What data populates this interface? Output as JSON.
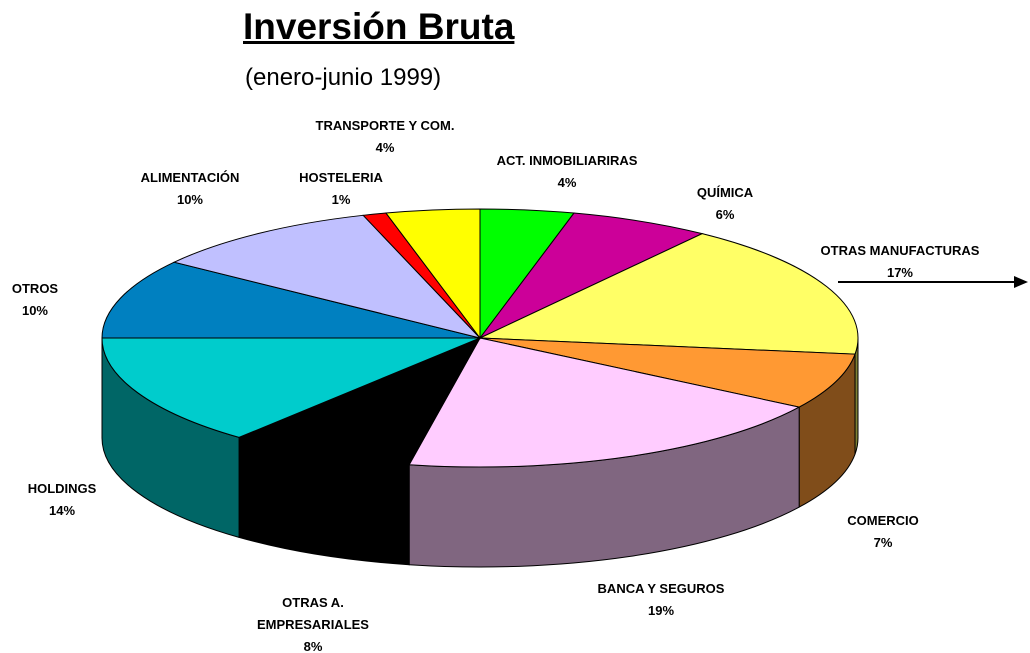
{
  "chart_data": {
    "type": "pie3d",
    "title": "Inversión Bruta",
    "subtitle": "(enero-junio 1999)",
    "categories": [
      "ACT. INMOBILIARIRAS",
      "QUÍMICA",
      "OTRAS MANUFACTURAS",
      "COMERCIO",
      "BANCA Y SEGUROS",
      "OTRAS A. EMPRESARIALES",
      "HOLDINGS",
      "OTROS",
      "ALIMENTACIÓN",
      "HOSTELERIA",
      "TRANSPORTE Y COM."
    ],
    "values": [
      4,
      6,
      17,
      7,
      19,
      8,
      14,
      10,
      10,
      1,
      4
    ],
    "value_labels": [
      "4%",
      "6%",
      "17%",
      "7%",
      "19%",
      "8%",
      "14%",
      "10%",
      "10%",
      "1%",
      "4%"
    ],
    "colors": [
      "#00ff00",
      "#cc0099",
      "#ffff66",
      "#ff9933",
      "#ffccff",
      "#000000",
      "#00cccc",
      "#0080c0",
      "#c0c0ff",
      "#ff0000",
      "#ffff00"
    ]
  }
}
